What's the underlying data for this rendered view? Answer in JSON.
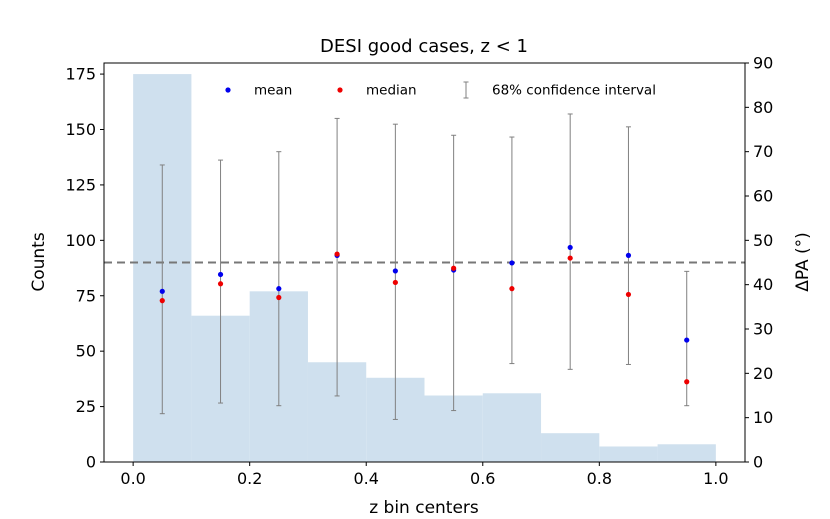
{
  "chart_data": {
    "type": "bar",
    "title": "DESI good cases, z < 1",
    "xlabel": "z bin centers",
    "ylabel": "Counts",
    "y2label": "ΔPA (°)",
    "xlim": [
      -0.05,
      1.05
    ],
    "ylim": [
      0,
      180
    ],
    "y2lim": [
      0,
      90
    ],
    "x_ticks": [
      "0.0",
      "0.2",
      "0.4",
      "0.6",
      "0.8",
      "1.0"
    ],
    "y_ticks": [
      "0",
      "25",
      "50",
      "75",
      "100",
      "125",
      "150",
      "175"
    ],
    "y2_ticks": [
      "0",
      "10",
      "20",
      "30",
      "40",
      "50",
      "60",
      "70",
      "80",
      "90"
    ],
    "histogram": {
      "bin_edges": [
        0.0,
        0.1,
        0.2,
        0.3,
        0.4,
        0.5,
        0.6,
        0.7,
        0.8,
        0.9,
        1.0
      ],
      "counts": [
        175,
        66,
        77,
        45,
        38,
        30,
        31,
        13,
        7,
        8
      ],
      "color": "#cfe0ee"
    },
    "bin_centers": [
      0.05,
      0.15,
      0.25,
      0.35,
      0.45,
      0.55,
      0.65,
      0.75,
      0.85,
      0.95
    ],
    "series": [
      {
        "name": "mean",
        "values": [
          38.5,
          42.3,
          39.1,
          46.6,
          43.1,
          43.3,
          44.9,
          48.4,
          46.6,
          27.5
        ],
        "color": "#0000ee"
      },
      {
        "name": "median",
        "values": [
          36.4,
          40.2,
          37.1,
          46.9,
          40.5,
          43.7,
          39.1,
          46.0,
          37.8,
          18.1
        ],
        "color": "#ee0000"
      }
    ],
    "ci": {
      "name": "68% confidence interval",
      "low": [
        10.9,
        13.3,
        12.7,
        14.9,
        9.6,
        11.6,
        22.2,
        20.9,
        22.0,
        12.7
      ],
      "high": [
        67.0,
        68.1,
        70.0,
        77.5,
        76.2,
        73.7,
        73.3,
        78.5,
        75.6,
        43.0
      ],
      "color": "#808080"
    },
    "hline": {
      "value": 45,
      "color": "#777777",
      "style": "dashed"
    },
    "legend_position": "top-center"
  }
}
